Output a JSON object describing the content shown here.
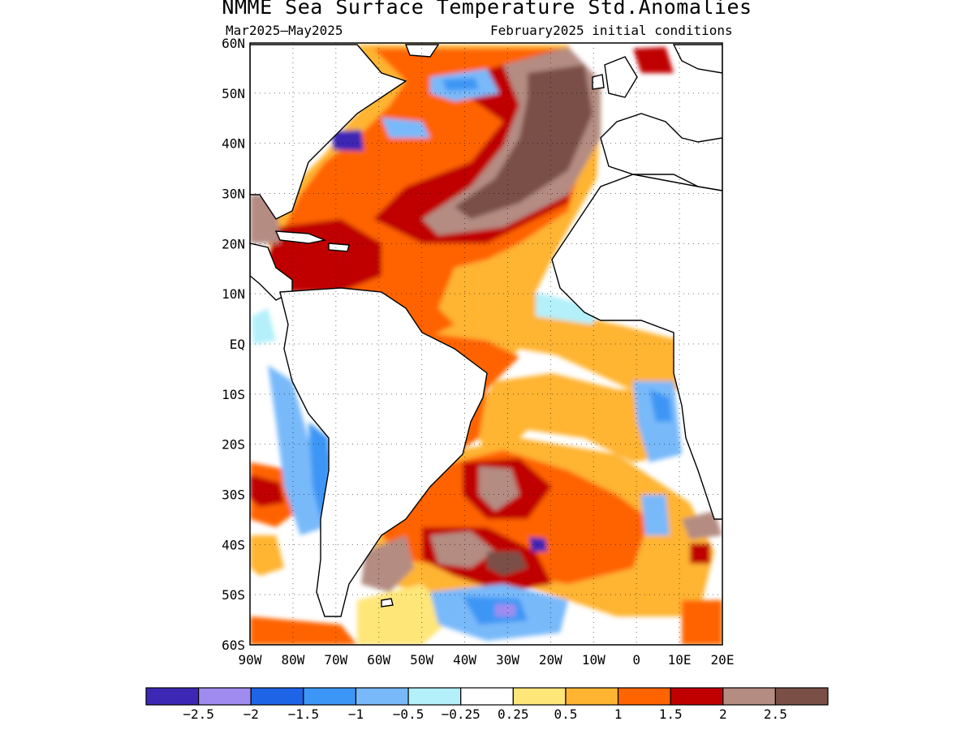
{
  "title": "NMME Sea Surface Temperature Std.Anomalies",
  "subtitle_left": "Mar2025–May2025",
  "subtitle_right": "February2025 initial conditions",
  "map": {
    "projection": "lat-lon",
    "lon_range": [
      -90,
      20
    ],
    "lat_range": [
      -60,
      60
    ],
    "grid": "dotted",
    "lat_labels": [
      "60N",
      "50N",
      "40N",
      "30N",
      "20N",
      "10N",
      "EQ",
      "10S",
      "20S",
      "30S",
      "40S",
      "50S",
      "60S"
    ],
    "lon_labels": [
      "90W",
      "80W",
      "70W",
      "60W",
      "50W",
      "40W",
      "30W",
      "20W",
      "10W",
      "0",
      "10E",
      "20E"
    ]
  },
  "colorbar": {
    "colors": [
      "#3c28b4",
      "#a08cf0",
      "#1e64e6",
      "#3c96f5",
      "#78b9fa",
      "#b4f0fa",
      "#ffffff",
      "#ffe678",
      "#ffb432",
      "#ff6400",
      "#c00000",
      "#b48c82",
      "#7a5046"
    ],
    "labels": [
      "−2.5",
      "−2",
      "−1.5",
      "−1",
      "−0.5",
      "−0.25",
      "0.25",
      "0.5",
      "1",
      "1.5",
      "2",
      "2.5"
    ]
  }
}
